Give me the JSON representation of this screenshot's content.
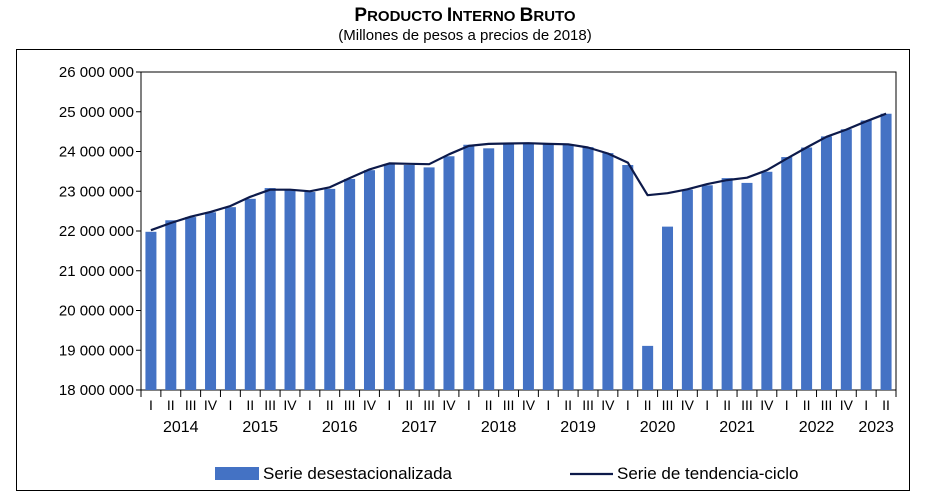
{
  "chart_data": {
    "type": "bar",
    "title": "Producto Interno Bruto",
    "subtitle": "(Millones de pesos a precios de 2018)",
    "ylim": [
      18000000,
      26000000
    ],
    "yticks": [
      18000000,
      19000000,
      20000000,
      21000000,
      22000000,
      23000000,
      24000000,
      25000000,
      26000000
    ],
    "ytick_labels": [
      "18 000 000",
      "19 000 000",
      "20 000 000",
      "21 000 000",
      "22 000 000",
      "23 000 000",
      "24 000 000",
      "25 000 000",
      "26 000 000"
    ],
    "quarters": [
      "I",
      "II",
      "III",
      "IV",
      "I",
      "II",
      "III",
      "IV",
      "I",
      "II",
      "III",
      "IV",
      "I",
      "II",
      "III",
      "IV",
      "I",
      "II",
      "III",
      "IV",
      "I",
      "II",
      "III",
      "IV",
      "I",
      "II",
      "III",
      "IV",
      "I",
      "II",
      "III",
      "IV",
      "I",
      "II",
      "III",
      "IV",
      "I",
      "II"
    ],
    "years": [
      "2014",
      "2015",
      "2016",
      "2017",
      "2018",
      "2019",
      "2020",
      "2021",
      "2022",
      "2023"
    ],
    "series": [
      {
        "name": "Serie desestacionalizada",
        "type": "bar",
        "color": "#4472C4",
        "values": [
          21980000,
          22270000,
          22350000,
          22470000,
          22600000,
          22810000,
          23080000,
          23030000,
          22980000,
          23060000,
          23310000,
          23530000,
          23680000,
          23660000,
          23600000,
          23880000,
          24170000,
          24080000,
          24180000,
          24220000,
          24190000,
          24180000,
          24110000,
          23960000,
          23660000,
          19110000,
          22110000,
          23040000,
          23150000,
          23330000,
          23210000,
          23490000,
          23860000,
          24100000,
          24380000,
          24560000,
          24780000,
          24950000
        ]
      },
      {
        "name": "Serie de tendencia-ciclo",
        "type": "line",
        "color": "#0D1A4A",
        "values": [
          22020000,
          22200000,
          22360000,
          22480000,
          22630000,
          22860000,
          23040000,
          23040000,
          23000000,
          23100000,
          23330000,
          23550000,
          23700000,
          23690000,
          23680000,
          23930000,
          24140000,
          24190000,
          24200000,
          24210000,
          24190000,
          24180000,
          24100000,
          23950000,
          23720000,
          22900000,
          22950000,
          23050000,
          23180000,
          23280000,
          23340000,
          23530000,
          23820000,
          24100000,
          24370000,
          24550000,
          24760000,
          24950000
        ]
      }
    ],
    "legend_position": "bottom"
  }
}
